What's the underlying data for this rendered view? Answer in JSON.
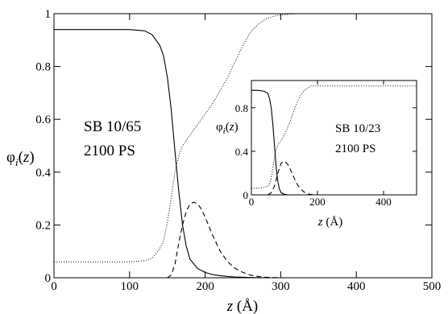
{
  "chart_data": [
    {
      "type": "line",
      "xlabel": "z (Å)",
      "ylabel": "φi(z)",
      "xlim": [
        0,
        500
      ],
      "ylim": [
        0,
        1
      ],
      "x_ticks": [
        "0",
        "100",
        "200",
        "300",
        "400",
        "500"
      ],
      "y_ticks": [
        "0",
        "0.2",
        "0.4",
        "0.6",
        "0.8",
        "1"
      ],
      "annotations": [
        "SB 10/65",
        "2100 PS"
      ],
      "grid": false,
      "series": [
        {
          "style": "solid",
          "x": [
            0,
            50,
            100,
            120,
            130,
            140,
            145,
            150,
            155,
            160,
            165,
            170,
            175,
            180,
            190,
            200,
            210,
            220,
            230,
            240,
            260,
            280,
            300
          ],
          "y": [
            0.94,
            0.94,
            0.94,
            0.935,
            0.92,
            0.88,
            0.84,
            0.76,
            0.64,
            0.48,
            0.33,
            0.2,
            0.12,
            0.07,
            0.035,
            0.02,
            0.012,
            0.008,
            0.005,
            0.003,
            0.001,
            0,
            0
          ]
        },
        {
          "style": "dotted",
          "x": [
            0,
            50,
            100,
            120,
            130,
            140,
            145,
            150,
            155,
            160,
            165,
            170,
            175,
            180,
            190,
            200,
            210,
            220,
            230,
            240,
            250,
            260,
            270,
            280,
            290,
            300,
            320,
            350,
            400,
            450,
            500
          ],
          "y": [
            0.06,
            0.06,
            0.06,
            0.065,
            0.075,
            0.11,
            0.14,
            0.21,
            0.3,
            0.4,
            0.46,
            0.5,
            0.52,
            0.54,
            0.58,
            0.62,
            0.66,
            0.71,
            0.76,
            0.82,
            0.88,
            0.93,
            0.96,
            0.98,
            0.99,
            0.995,
            1.0,
            1.0,
            1.0,
            1.0,
            1.0
          ]
        },
        {
          "style": "dashed",
          "x": [
            150,
            155,
            160,
            165,
            170,
            175,
            180,
            185,
            190,
            195,
            200,
            210,
            220,
            230,
            240,
            250,
            260,
            270,
            280,
            300
          ],
          "y": [
            0.0,
            0.01,
            0.05,
            0.13,
            0.2,
            0.25,
            0.28,
            0.286,
            0.28,
            0.26,
            0.23,
            0.16,
            0.1,
            0.06,
            0.035,
            0.02,
            0.01,
            0.005,
            0.002,
            0.0
          ]
        }
      ]
    },
    {
      "type": "line",
      "xlabel": "z (Å)",
      "ylabel": "φi(z)",
      "xlim": [
        0,
        500
      ],
      "ylim": [
        0,
        1.05
      ],
      "x_ticks": [
        "0",
        "200",
        "400"
      ],
      "y_ticks": [
        "0",
        "0.4",
        "0.8"
      ],
      "annotations": [
        "SB 10/23",
        "2100 PS"
      ],
      "grid": false,
      "series": [
        {
          "style": "solid",
          "x": [
            0,
            20,
            40,
            50,
            55,
            60,
            65,
            70,
            75,
            80,
            85,
            90,
            100,
            110,
            120
          ],
          "y": [
            0.96,
            0.96,
            0.95,
            0.93,
            0.88,
            0.8,
            0.65,
            0.45,
            0.25,
            0.12,
            0.05,
            0.02,
            0.005,
            0.001,
            0
          ]
        },
        {
          "style": "dotted",
          "x": [
            0,
            20,
            40,
            50,
            55,
            60,
            65,
            70,
            75,
            80,
            90,
            100,
            110,
            120,
            130,
            140,
            150,
            160,
            170,
            180,
            200,
            250,
            300,
            400,
            500
          ],
          "y": [
            0.06,
            0.06,
            0.07,
            0.08,
            0.1,
            0.15,
            0.25,
            0.35,
            0.42,
            0.46,
            0.5,
            0.55,
            0.62,
            0.7,
            0.78,
            0.86,
            0.92,
            0.96,
            0.98,
            1.0,
            1.0,
            1.0,
            1.0,
            1.0,
            1.0
          ]
        },
        {
          "style": "dashed",
          "x": [
            50,
            60,
            70,
            80,
            90,
            100,
            110,
            120,
            130,
            140,
            150,
            160,
            170,
            180,
            190,
            200
          ],
          "y": [
            0.0,
            0.02,
            0.08,
            0.2,
            0.29,
            0.31,
            0.28,
            0.22,
            0.15,
            0.09,
            0.05,
            0.025,
            0.01,
            0.004,
            0.001,
            0
          ]
        }
      ]
    }
  ]
}
